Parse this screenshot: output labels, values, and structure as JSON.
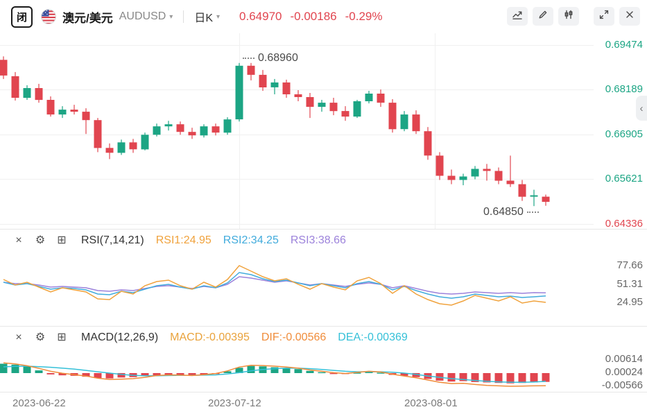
{
  "topbar": {
    "logo_text": "闭",
    "pair_cn": "澳元/美元",
    "pair_code": "AUDUSD",
    "interval_label": "日K",
    "price": "0.64970",
    "change": "-0.00186",
    "change_pct": "-0.29%"
  },
  "icons": {
    "caret_down": "▾",
    "chevron_left": "‹",
    "close": "×",
    "settings": "⚙",
    "expand": "⊞"
  },
  "colors": {
    "up": "#1CA584",
    "down": "#E1454F",
    "rsi1": "#F0A23C",
    "rsi2": "#41ABDC",
    "rsi3": "#9C82DB",
    "macd_value": "#E9A23B",
    "dif": "#F08C3A",
    "dea": "#34C0D8",
    "grid": "#F0F0F0",
    "muted_text": "#7A7A7A"
  },
  "main_chart": {
    "y_axis_labels": [
      "0.69474",
      "0.68189",
      "0.66905",
      "0.65621",
      "0.64336"
    ],
    "high_annotation": "0.68960",
    "low_annotation": "0.64850"
  },
  "rsi": {
    "title": "RSI(7,14,21)",
    "rsi1_label": "RSI1:24.95",
    "rsi2_label": "RSI2:34.25",
    "rsi3_label": "RSI3:38.66",
    "axis_labels": [
      "77.66",
      "51.31",
      "24.95"
    ]
  },
  "macd": {
    "title": "MACD(12,26,9)",
    "macd_label": "MACD:-0.00395",
    "dif_label": "DIF:-0.00566",
    "dea_label": "DEA:-0.00369",
    "axis_labels": [
      "0.00614",
      "0.00024",
      "-0.00566"
    ]
  },
  "time_axis": [
    "2023-06-22",
    "2023-07-12",
    "2023-08-01"
  ],
  "chart_data": {
    "type": "candlestick",
    "symbol": "AUDUSD",
    "interval": "daily",
    "title": "澳元/美元 AUDUSD 日K",
    "x_axis_dates": [
      "2023-06-22",
      "2023-07-12",
      "2023-08-01"
    ],
    "price_axis": {
      "top": 0.69474,
      "bottom": 0.64336,
      "ticks": [
        0.69474,
        0.68189,
        0.66905,
        0.65621,
        0.64336
      ]
    },
    "high_marker": 0.6896,
    "low_marker": 0.6485,
    "last_price": 0.6497,
    "change": -0.00186,
    "change_pct": -0.29,
    "candles": [
      [
        0.6905,
        0.6915,
        0.685,
        0.686
      ],
      [
        0.6858,
        0.687,
        0.6788,
        0.6796
      ],
      [
        0.6796,
        0.6832,
        0.679,
        0.6824
      ],
      [
        0.6824,
        0.6836,
        0.6782,
        0.679
      ],
      [
        0.679,
        0.68,
        0.6742,
        0.6748
      ],
      [
        0.6748,
        0.6772,
        0.6738,
        0.6762
      ],
      [
        0.6762,
        0.6776,
        0.6748,
        0.6756
      ],
      [
        0.6756,
        0.6766,
        0.6692,
        0.6732
      ],
      [
        0.6732,
        0.6738,
        0.664,
        0.6652
      ],
      [
        0.6652,
        0.6665,
        0.662,
        0.6638
      ],
      [
        0.6638,
        0.6676,
        0.6632,
        0.6668
      ],
      [
        0.6668,
        0.6678,
        0.6638,
        0.6648
      ],
      [
        0.6648,
        0.6696,
        0.6645,
        0.669
      ],
      [
        0.669,
        0.6722,
        0.6685,
        0.6714
      ],
      [
        0.6714,
        0.673,
        0.6702,
        0.672
      ],
      [
        0.672,
        0.6728,
        0.669,
        0.6698
      ],
      [
        0.6698,
        0.671,
        0.6678,
        0.6688
      ],
      [
        0.6688,
        0.672,
        0.6682,
        0.6714
      ],
      [
        0.6714,
        0.6722,
        0.6688,
        0.6696
      ],
      [
        0.6696,
        0.674,
        0.669,
        0.6734
      ],
      [
        0.6734,
        0.6896,
        0.6728,
        0.6888
      ],
      [
        0.6888,
        0.6896,
        0.6846,
        0.6862
      ],
      [
        0.6862,
        0.6876,
        0.6816,
        0.6826
      ],
      [
        0.6826,
        0.685,
        0.6806,
        0.684
      ],
      [
        0.684,
        0.6848,
        0.6796,
        0.6806
      ],
      [
        0.6806,
        0.6818,
        0.6786,
        0.6798
      ],
      [
        0.6798,
        0.681,
        0.6738,
        0.677
      ],
      [
        0.677,
        0.679,
        0.6756,
        0.6782
      ],
      [
        0.6782,
        0.6796,
        0.6746,
        0.6758
      ],
      [
        0.6758,
        0.6772,
        0.673,
        0.6742
      ],
      [
        0.6742,
        0.679,
        0.6738,
        0.6786
      ],
      [
        0.6786,
        0.6816,
        0.678,
        0.6808
      ],
      [
        0.6808,
        0.682,
        0.677,
        0.6782
      ],
      [
        0.6782,
        0.6792,
        0.6696,
        0.6706
      ],
      [
        0.6706,
        0.6758,
        0.67,
        0.6748
      ],
      [
        0.6748,
        0.676,
        0.6692,
        0.67
      ],
      [
        0.67,
        0.6712,
        0.6618,
        0.663
      ],
      [
        0.663,
        0.664,
        0.656,
        0.6572
      ],
      [
        0.6572,
        0.659,
        0.6548,
        0.656
      ],
      [
        0.656,
        0.6578,
        0.6545,
        0.657
      ],
      [
        0.657,
        0.66,
        0.6562,
        0.6592
      ],
      [
        0.6592,
        0.6606,
        0.6558,
        0.6586
      ],
      [
        0.6586,
        0.6596,
        0.6548,
        0.6558
      ],
      [
        0.6558,
        0.663,
        0.654,
        0.6548
      ],
      [
        0.6548,
        0.656,
        0.65,
        0.6512
      ],
      [
        0.6512,
        0.6532,
        0.6485,
        0.6516
      ],
      [
        0.6512,
        0.6518,
        0.6486,
        0.6497
      ]
    ],
    "indicators": {
      "rsi": {
        "params": [
          7,
          14,
          21
        ],
        "ticks": [
          77.66,
          51.31,
          24.95
        ],
        "rsi1": [
          58,
          50,
          54,
          47,
          40,
          46,
          43,
          40,
          30,
          29,
          41,
          37,
          49,
          55,
          57,
          49,
          44,
          54,
          47,
          58,
          78,
          70,
          62,
          56,
          59,
          51,
          44,
          52,
          47,
          43,
          56,
          61,
          52,
          38,
          49,
          37,
          29,
          23,
          21,
          27,
          35,
          31,
          27,
          33,
          24,
          27,
          24.95
        ],
        "rsi2": [
          54,
          50,
          52,
          48,
          44,
          46,
          45,
          43,
          37,
          36,
          41,
          39,
          44,
          49,
          51,
          47,
          44,
          49,
          46,
          53,
          68,
          65,
          59,
          55,
          57,
          53,
          49,
          52,
          49,
          46,
          52,
          55,
          51,
          43,
          48,
          42,
          37,
          33,
          31,
          33,
          37,
          35,
          33,
          34,
          32,
          33,
          34.25
        ],
        "rsi3": [
          54,
          52,
          52,
          50,
          47,
          48,
          47,
          46,
          42,
          41,
          43,
          42,
          45,
          48,
          49,
          47,
          45,
          48,
          46,
          51,
          62,
          60,
          57,
          54,
          56,
          53,
          50,
          52,
          50,
          48,
          51,
          53,
          51,
          46,
          49,
          45,
          41,
          38,
          37,
          38,
          40,
          39,
          38,
          39,
          38,
          39,
          38.66
        ]
      },
      "macd": {
        "params": [
          12,
          26,
          9
        ],
        "ticks": [
          0.00614,
          0.00024,
          -0.00566
        ],
        "hist": [
          0.0042,
          0.0038,
          0.003,
          0.0012,
          -0.0006,
          -0.001,
          -0.0012,
          -0.0016,
          -0.0022,
          -0.0024,
          -0.002,
          -0.0018,
          -0.0014,
          -0.001,
          -0.0008,
          -0.001,
          -0.0012,
          -0.0008,
          -0.0004,
          0.0008,
          0.0024,
          0.0032,
          0.003,
          0.0026,
          0.0022,
          0.0018,
          0.001,
          0.0004,
          -0.0002,
          -0.0004,
          0.0002,
          0.0006,
          0.0002,
          -0.0008,
          -0.0012,
          -0.0018,
          -0.0026,
          -0.0034,
          -0.0038,
          -0.0036,
          -0.004,
          -0.0042,
          -0.0044,
          -0.0046,
          -0.0044,
          -0.0042,
          -0.00395
        ],
        "dif": [
          0.0046,
          0.0041,
          0.0033,
          0.0021,
          0.0008,
          -0.0001,
          -0.0007,
          -0.0013,
          -0.0023,
          -0.0029,
          -0.0027,
          -0.0025,
          -0.0019,
          -0.0011,
          -0.0008,
          -0.0009,
          -0.0011,
          -0.0007,
          -0.0002,
          0.001,
          0.0027,
          0.0035,
          0.0034,
          0.0031,
          0.0027,
          0.0022,
          0.0014,
          0.0008,
          0.0002,
          -0.0002,
          0.0003,
          0.0008,
          0.0005,
          -0.0005,
          -0.0013,
          -0.0021,
          -0.0031,
          -0.0041,
          -0.0047,
          -0.0046,
          -0.0051,
          -0.0055,
          -0.0057,
          -0.0059,
          -0.0058,
          -0.0057,
          -0.00566
        ],
        "dea": [
          0.0028,
          0.003,
          0.0031,
          0.0029,
          0.0026,
          0.0022,
          0.0018,
          0.0012,
          0.0006,
          0.0,
          -0.0006,
          -0.001,
          -0.0012,
          -0.0012,
          -0.0011,
          -0.001,
          -0.001,
          -0.0009,
          -0.0008,
          -0.0004,
          0.0002,
          0.001,
          0.0016,
          0.002,
          0.0022,
          0.0022,
          0.002,
          0.0016,
          0.0012,
          0.0008,
          0.0006,
          0.0006,
          0.0006,
          0.0004,
          0.0,
          -0.0006,
          -0.0013,
          -0.0019,
          -0.0025,
          -0.0029,
          -0.0033,
          -0.0037,
          -0.0039,
          -0.0041,
          -0.0041,
          -0.004,
          -0.00369
        ]
      }
    }
  }
}
